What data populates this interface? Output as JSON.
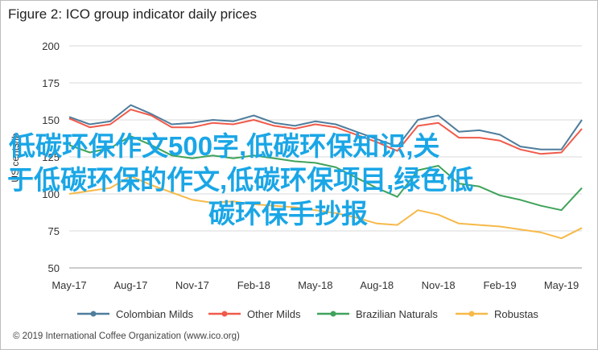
{
  "chart_data": {
    "type": "line",
    "title": "Figure 2: ICO group indicator daily prices",
    "ylabel": "US cents/lb",
    "ylim": [
      50,
      200
    ],
    "yticks": [
      50,
      75,
      100,
      125,
      150,
      175,
      200
    ],
    "xticks": [
      "May-17",
      "Aug-17",
      "Nov-17",
      "Feb-18",
      "May-18",
      "Aug-18",
      "Nov-18",
      "Feb-19",
      "May-19"
    ],
    "x": [
      "May-17",
      "Jun-17",
      "Jul-17",
      "Aug-17",
      "Sep-17",
      "Oct-17",
      "Nov-17",
      "Dec-17",
      "Jan-18",
      "Feb-18",
      "Mar-18",
      "Apr-18",
      "May-18",
      "Jun-18",
      "Jul-18",
      "Aug-18",
      "Sep-18",
      "Oct-18",
      "Nov-18",
      "Dec-18",
      "Jan-19",
      "Feb-19",
      "Mar-19",
      "Apr-19",
      "May-19",
      "Jun-19"
    ],
    "grid": true,
    "legend_position": "bottom",
    "series": [
      {
        "name": "Colombian Milds",
        "color": "#4f7d9c",
        "values": [
          152,
          147,
          149,
          160,
          154,
          147,
          148,
          150,
          149,
          153,
          148,
          146,
          149,
          147,
          142,
          137,
          132,
          150,
          153,
          142,
          143,
          140,
          132,
          130,
          130,
          150
        ]
      },
      {
        "name": "Other Milds",
        "color": "#f05a4a",
        "values": [
          151,
          145,
          147,
          157,
          153,
          145,
          145,
          148,
          147,
          150,
          146,
          144,
          147,
          145,
          140,
          135,
          129,
          146,
          148,
          138,
          138,
          136,
          130,
          127,
          128,
          144
        ]
      },
      {
        "name": "Brazilian Naturals",
        "color": "#3fa35a",
        "values": [
          133,
          128,
          131,
          139,
          133,
          126,
          124,
          126,
          124,
          126,
          124,
          122,
          121,
          118,
          111,
          104,
          98,
          116,
          119,
          107,
          105,
          99,
          96,
          92,
          89,
          104
        ]
      },
      {
        "name": "Robustas",
        "color": "#f7b949",
        "values": [
          100,
          102,
          104,
          112,
          106,
          101,
          96,
          94,
          95,
          93,
          92,
          91,
          89,
          87,
          84,
          80,
          79,
          89,
          86,
          80,
          79,
          78,
          76,
          74,
          70,
          77
        ]
      }
    ]
  },
  "copyright": "© 2019 International Coffee Organization (www.ico.org)",
  "overlay": {
    "line1": "低碳环保作文500字,低碳环保知识,关",
    "line2": "于低碳环保的作文,低碳环保项目,绿色低",
    "line3": "碳环保手抄报"
  }
}
